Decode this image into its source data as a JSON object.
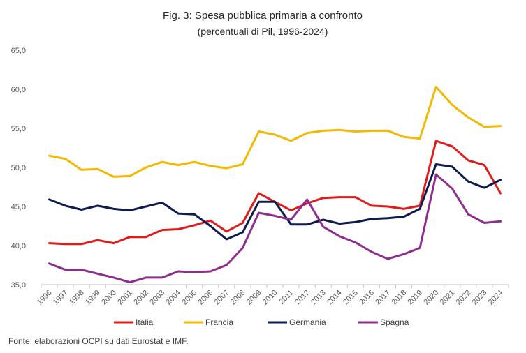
{
  "chart_data": {
    "type": "line",
    "title": "Fig. 3: Spesa pubblica primaria a confronto",
    "subtitle": "(percentuali di Pil, 1996-2024)",
    "xlabel": "",
    "ylabel": "",
    "ylim": [
      35.0,
      65.0
    ],
    "yticks": [
      "35,0",
      "40,0",
      "45,0",
      "50,0",
      "55,0",
      "60,0",
      "65,0"
    ],
    "grid": false,
    "legend_position": "bottom",
    "categories": [
      "1996",
      "1997",
      "1998",
      "1999",
      "2000",
      "2001",
      "2002",
      "2003",
      "2004",
      "2005",
      "2006",
      "2007",
      "2008",
      "2009",
      "2010",
      "2011",
      "2012",
      "2013",
      "2014",
      "2015",
      "2016",
      "2017",
      "2018",
      "2019",
      "2020",
      "2021",
      "2022",
      "2023",
      "2024"
    ],
    "series": [
      {
        "name": "Italia",
        "color": "#e31a1c",
        "values": [
          40.3,
          40.2,
          40.2,
          40.7,
          40.3,
          41.1,
          41.1,
          42.0,
          42.1,
          42.6,
          43.2,
          41.8,
          42.9,
          46.7,
          45.6,
          44.5,
          45.4,
          46.1,
          46.2,
          46.2,
          45.1,
          45.0,
          44.7,
          45.1,
          53.4,
          52.7,
          50.9,
          50.3,
          46.7
        ]
      },
      {
        "name": "Francia",
        "color": "#f5b800",
        "values": [
          51.5,
          51.1,
          49.7,
          49.8,
          48.8,
          48.9,
          50.0,
          50.7,
          50.3,
          50.7,
          50.2,
          49.9,
          50.4,
          54.6,
          54.2,
          53.4,
          54.4,
          54.7,
          54.8,
          54.6,
          54.7,
          54.7,
          53.9,
          53.7,
          60.3,
          58.0,
          56.4,
          55.2,
          55.3
        ]
      },
      {
        "name": "Germania",
        "color": "#0d1b4f",
        "values": [
          45.9,
          45.1,
          44.6,
          45.1,
          44.7,
          44.5,
          45.0,
          45.5,
          44.1,
          44.0,
          42.5,
          40.8,
          41.7,
          45.6,
          45.6,
          42.7,
          42.7,
          43.3,
          42.8,
          43.0,
          43.4,
          43.5,
          43.7,
          44.7,
          50.4,
          50.1,
          48.2,
          47.4,
          48.4
        ]
      },
      {
        "name": "Spagna",
        "color": "#8e2d8e",
        "values": [
          37.7,
          36.9,
          36.9,
          36.4,
          35.9,
          35.3,
          35.9,
          35.9,
          36.7,
          36.6,
          36.7,
          37.5,
          39.7,
          44.2,
          43.8,
          43.3,
          45.9,
          42.4,
          41.2,
          40.4,
          39.2,
          38.3,
          38.9,
          39.7,
          49.1,
          47.3,
          44.0,
          42.9,
          43.1
        ]
      }
    ]
  },
  "source_note": "Fonte: elaborazioni OCPI su dati Eurostat e IMF."
}
